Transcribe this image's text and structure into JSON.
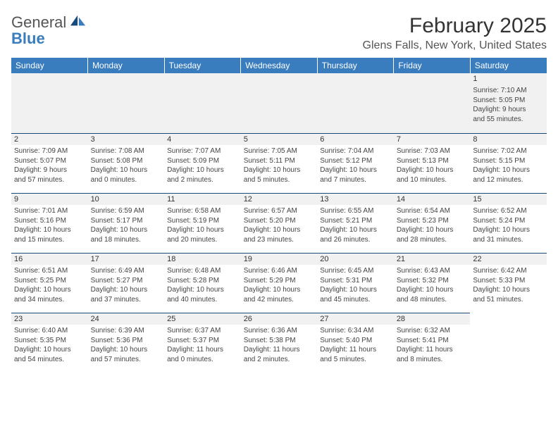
{
  "logo": {
    "text_top": "General",
    "text_bottom": "Blue"
  },
  "title": {
    "month": "February 2025",
    "location": "Glens Falls, New York, United States"
  },
  "colors": {
    "header_bg": "#3a7dbf",
    "daystrip_bg": "#f1f1f1",
    "divider": "#1a4a7a",
    "text": "#333333"
  },
  "daynames": [
    "Sunday",
    "Monday",
    "Tuesday",
    "Wednesday",
    "Thursday",
    "Friday",
    "Saturday"
  ],
  "weeks": [
    [
      null,
      null,
      null,
      null,
      null,
      null,
      {
        "n": "1",
        "sr": "Sunrise: 7:10 AM",
        "ss": "Sunset: 5:05 PM",
        "dl1": "Daylight: 9 hours",
        "dl2": "and 55 minutes."
      }
    ],
    [
      {
        "n": "2",
        "sr": "Sunrise: 7:09 AM",
        "ss": "Sunset: 5:07 PM",
        "dl1": "Daylight: 9 hours",
        "dl2": "and 57 minutes."
      },
      {
        "n": "3",
        "sr": "Sunrise: 7:08 AM",
        "ss": "Sunset: 5:08 PM",
        "dl1": "Daylight: 10 hours",
        "dl2": "and 0 minutes."
      },
      {
        "n": "4",
        "sr": "Sunrise: 7:07 AM",
        "ss": "Sunset: 5:09 PM",
        "dl1": "Daylight: 10 hours",
        "dl2": "and 2 minutes."
      },
      {
        "n": "5",
        "sr": "Sunrise: 7:05 AM",
        "ss": "Sunset: 5:11 PM",
        "dl1": "Daylight: 10 hours",
        "dl2": "and 5 minutes."
      },
      {
        "n": "6",
        "sr": "Sunrise: 7:04 AM",
        "ss": "Sunset: 5:12 PM",
        "dl1": "Daylight: 10 hours",
        "dl2": "and 7 minutes."
      },
      {
        "n": "7",
        "sr": "Sunrise: 7:03 AM",
        "ss": "Sunset: 5:13 PM",
        "dl1": "Daylight: 10 hours",
        "dl2": "and 10 minutes."
      },
      {
        "n": "8",
        "sr": "Sunrise: 7:02 AM",
        "ss": "Sunset: 5:15 PM",
        "dl1": "Daylight: 10 hours",
        "dl2": "and 12 minutes."
      }
    ],
    [
      {
        "n": "9",
        "sr": "Sunrise: 7:01 AM",
        "ss": "Sunset: 5:16 PM",
        "dl1": "Daylight: 10 hours",
        "dl2": "and 15 minutes."
      },
      {
        "n": "10",
        "sr": "Sunrise: 6:59 AM",
        "ss": "Sunset: 5:17 PM",
        "dl1": "Daylight: 10 hours",
        "dl2": "and 18 minutes."
      },
      {
        "n": "11",
        "sr": "Sunrise: 6:58 AM",
        "ss": "Sunset: 5:19 PM",
        "dl1": "Daylight: 10 hours",
        "dl2": "and 20 minutes."
      },
      {
        "n": "12",
        "sr": "Sunrise: 6:57 AM",
        "ss": "Sunset: 5:20 PM",
        "dl1": "Daylight: 10 hours",
        "dl2": "and 23 minutes."
      },
      {
        "n": "13",
        "sr": "Sunrise: 6:55 AM",
        "ss": "Sunset: 5:21 PM",
        "dl1": "Daylight: 10 hours",
        "dl2": "and 26 minutes."
      },
      {
        "n": "14",
        "sr": "Sunrise: 6:54 AM",
        "ss": "Sunset: 5:23 PM",
        "dl1": "Daylight: 10 hours",
        "dl2": "and 28 minutes."
      },
      {
        "n": "15",
        "sr": "Sunrise: 6:52 AM",
        "ss": "Sunset: 5:24 PM",
        "dl1": "Daylight: 10 hours",
        "dl2": "and 31 minutes."
      }
    ],
    [
      {
        "n": "16",
        "sr": "Sunrise: 6:51 AM",
        "ss": "Sunset: 5:25 PM",
        "dl1": "Daylight: 10 hours",
        "dl2": "and 34 minutes."
      },
      {
        "n": "17",
        "sr": "Sunrise: 6:49 AM",
        "ss": "Sunset: 5:27 PM",
        "dl1": "Daylight: 10 hours",
        "dl2": "and 37 minutes."
      },
      {
        "n": "18",
        "sr": "Sunrise: 6:48 AM",
        "ss": "Sunset: 5:28 PM",
        "dl1": "Daylight: 10 hours",
        "dl2": "and 40 minutes."
      },
      {
        "n": "19",
        "sr": "Sunrise: 6:46 AM",
        "ss": "Sunset: 5:29 PM",
        "dl1": "Daylight: 10 hours",
        "dl2": "and 42 minutes."
      },
      {
        "n": "20",
        "sr": "Sunrise: 6:45 AM",
        "ss": "Sunset: 5:31 PM",
        "dl1": "Daylight: 10 hours",
        "dl2": "and 45 minutes."
      },
      {
        "n": "21",
        "sr": "Sunrise: 6:43 AM",
        "ss": "Sunset: 5:32 PM",
        "dl1": "Daylight: 10 hours",
        "dl2": "and 48 minutes."
      },
      {
        "n": "22",
        "sr": "Sunrise: 6:42 AM",
        "ss": "Sunset: 5:33 PM",
        "dl1": "Daylight: 10 hours",
        "dl2": "and 51 minutes."
      }
    ],
    [
      {
        "n": "23",
        "sr": "Sunrise: 6:40 AM",
        "ss": "Sunset: 5:35 PM",
        "dl1": "Daylight: 10 hours",
        "dl2": "and 54 minutes."
      },
      {
        "n": "24",
        "sr": "Sunrise: 6:39 AM",
        "ss": "Sunset: 5:36 PM",
        "dl1": "Daylight: 10 hours",
        "dl2": "and 57 minutes."
      },
      {
        "n": "25",
        "sr": "Sunrise: 6:37 AM",
        "ss": "Sunset: 5:37 PM",
        "dl1": "Daylight: 11 hours",
        "dl2": "and 0 minutes."
      },
      {
        "n": "26",
        "sr": "Sunrise: 6:36 AM",
        "ss": "Sunset: 5:38 PM",
        "dl1": "Daylight: 11 hours",
        "dl2": "and 2 minutes."
      },
      {
        "n": "27",
        "sr": "Sunrise: 6:34 AM",
        "ss": "Sunset: 5:40 PM",
        "dl1": "Daylight: 11 hours",
        "dl2": "and 5 minutes."
      },
      {
        "n": "28",
        "sr": "Sunrise: 6:32 AM",
        "ss": "Sunset: 5:41 PM",
        "dl1": "Daylight: 11 hours",
        "dl2": "and 8 minutes."
      },
      null
    ]
  ]
}
